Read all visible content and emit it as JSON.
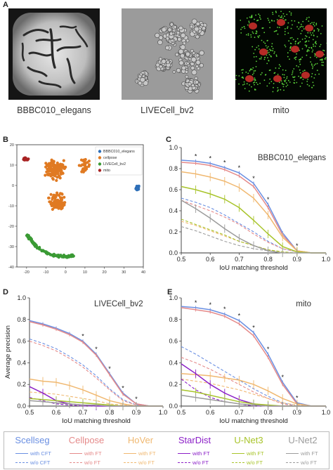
{
  "panel_letters": {
    "a": "A",
    "b": "B",
    "c": "C",
    "d": "D",
    "e": "E"
  },
  "image_captions": [
    "BBBC010_elegans",
    "LIVECell_bv2",
    "mito"
  ],
  "colors": {
    "scellseg": "#6a8fe2",
    "cellpose": "#e58a8a",
    "hover": "#f0b870",
    "stardist": "#8b1fc7",
    "unet3": "#a8c42a",
    "unet2": "#9c9c9c",
    "tsne_bbbc": "#2e6fb8",
    "tsne_cellpose": "#e07a22",
    "tsne_livecell": "#3a9a34",
    "tsne_mito": "#a82222"
  },
  "chart_data": [
    {
      "type": "scatter",
      "panel": "B",
      "xlim": [
        -25,
        40
      ],
      "ylim": [
        -40,
        20
      ],
      "xticks": [
        "-20",
        "-10",
        "0",
        "10",
        "20",
        "30",
        "40"
      ],
      "yticks": [
        "20",
        "10",
        "0",
        "-10",
        "-20",
        "-30",
        "-40"
      ],
      "legend": [
        "BBBC010_elegans",
        "cellpose",
        "LIVECell_bv2",
        "mito"
      ],
      "legend_position": "top-right",
      "clusters": [
        {
          "name": "BBBC010_elegans",
          "center": [
            37,
            -1.5
          ],
          "spread": [
            1.2,
            1.6
          ],
          "n": 30
        },
        {
          "name": "cellpose",
          "center": [
            -5,
            8
          ],
          "spread": [
            7,
            7
          ],
          "n": 140
        },
        {
          "name": "cellpose",
          "center": [
            -4,
            -8
          ],
          "spread": [
            6,
            5
          ],
          "n": 90
        },
        {
          "name": "cellpose",
          "center": [
            10,
            10
          ],
          "spread": [
            4,
            5
          ],
          "n": 30
        },
        {
          "name": "mito",
          "center": [
            -20.5,
            13
          ],
          "spread": [
            1.8,
            0.9
          ],
          "n": 30
        }
      ],
      "livecell_arc": [
        [
          -20,
          -24
        ],
        [
          -15,
          -30
        ],
        [
          -8,
          -34
        ],
        [
          0,
          -35
        ],
        [
          4,
          -34.5
        ]
      ]
    },
    {
      "type": "line",
      "panel": "C",
      "title": "BBBC010_elegans",
      "xlabel": "IoU matching threshold",
      "ylabel": "Average precision",
      "xlim": [
        0.5,
        1.0
      ],
      "ylim": [
        0,
        1.0
      ],
      "x": [
        0.5,
        0.55,
        0.6,
        0.65,
        0.7,
        0.75,
        0.8,
        0.85,
        0.9,
        0.95,
        1.0
      ],
      "xticks": [
        "0.5",
        "0.6",
        "0.7",
        "0.8",
        "0.9",
        "1.0"
      ],
      "yticks": [
        "0.0",
        "0.2",
        "0.4",
        "0.6",
        "0.8",
        "1.0"
      ],
      "stars_at": [
        0.55,
        0.6,
        0.65,
        0.7,
        0.75,
        0.8,
        0.9
      ],
      "series": [
        {
          "key": "scellseg",
          "ft": true,
          "values": [
            0.88,
            0.87,
            0.85,
            0.81,
            0.76,
            0.66,
            0.46,
            0.19,
            0.02,
            0.0,
            0.0
          ]
        },
        {
          "key": "cellpose",
          "ft": true,
          "values": [
            0.86,
            0.85,
            0.83,
            0.79,
            0.73,
            0.63,
            0.43,
            0.17,
            0.02,
            0.0,
            0.0
          ]
        },
        {
          "key": "hover",
          "ft": true,
          "values": [
            0.77,
            0.75,
            0.72,
            0.68,
            0.62,
            0.52,
            0.36,
            0.15,
            0.02,
            0.0,
            0.0
          ]
        },
        {
          "key": "unet3",
          "ft": true,
          "values": [
            0.63,
            0.6,
            0.56,
            0.51,
            0.43,
            0.31,
            0.18,
            0.06,
            0.01,
            0.0,
            0.0
          ]
        },
        {
          "key": "unet2",
          "ft": true,
          "values": [
            0.5,
            0.42,
            0.33,
            0.23,
            0.14,
            0.07,
            0.02,
            0.0,
            0.0,
            0.0,
            0.0
          ]
        },
        {
          "key": "scellseg",
          "ft": false,
          "values": [
            0.52,
            0.48,
            0.43,
            0.36,
            0.28,
            0.2,
            0.11,
            0.04,
            0.01,
            0.0,
            0.0
          ]
        },
        {
          "key": "cellpose",
          "ft": false,
          "values": [
            0.5,
            0.45,
            0.4,
            0.34,
            0.27,
            0.18,
            0.1,
            0.04,
            0.01,
            0.0,
            0.0
          ]
        },
        {
          "key": "hover",
          "ft": false,
          "values": [
            0.3,
            0.26,
            0.21,
            0.16,
            0.11,
            0.07,
            0.03,
            0.01,
            0.0,
            0.0,
            0.0
          ]
        },
        {
          "key": "unet3",
          "ft": false,
          "values": [
            0.32,
            0.27,
            0.22,
            0.17,
            0.11,
            0.07,
            0.03,
            0.01,
            0.0,
            0.0,
            0.0
          ]
        },
        {
          "key": "unet2",
          "ft": false,
          "values": [
            0.25,
            0.21,
            0.16,
            0.11,
            0.07,
            0.04,
            0.02,
            0.0,
            0.0,
            0.0,
            0.0
          ]
        }
      ]
    },
    {
      "type": "line",
      "panel": "D",
      "title": "LIVECell_bv2",
      "xlabel": "IoU matching threshold",
      "ylabel": "Average precision",
      "xlim": [
        0.5,
        1.0
      ],
      "ylim": [
        0,
        1.0
      ],
      "x": [
        0.5,
        0.55,
        0.6,
        0.65,
        0.7,
        0.75,
        0.8,
        0.85,
        0.9,
        0.95,
        1.0
      ],
      "xticks": [
        "0.5",
        "0.6",
        "0.7",
        "0.8",
        "0.9",
        "1.0"
      ],
      "yticks": [
        "0.0",
        "0.2",
        "0.4",
        "0.6",
        "0.8",
        "1.0"
      ],
      "stars_at": [
        0.7,
        0.75,
        0.8,
        0.85,
        0.9
      ],
      "series": [
        {
          "key": "scellseg",
          "ft": true,
          "values": [
            0.79,
            0.76,
            0.72,
            0.67,
            0.6,
            0.48,
            0.3,
            0.12,
            0.02,
            0.0,
            0.0
          ]
        },
        {
          "key": "cellpose",
          "ft": true,
          "values": [
            0.78,
            0.75,
            0.71,
            0.66,
            0.59,
            0.47,
            0.29,
            0.11,
            0.02,
            0.0,
            0.0
          ]
        },
        {
          "key": "scellseg",
          "ft": false,
          "values": [
            0.62,
            0.58,
            0.53,
            0.46,
            0.38,
            0.28,
            0.16,
            0.06,
            0.01,
            0.0,
            0.0
          ]
        },
        {
          "key": "cellpose",
          "ft": false,
          "values": [
            0.6,
            0.56,
            0.51,
            0.44,
            0.36,
            0.26,
            0.15,
            0.05,
            0.01,
            0.0,
            0.0
          ]
        },
        {
          "key": "hover",
          "ft": true,
          "values": [
            0.25,
            0.23,
            0.22,
            0.19,
            0.15,
            0.1,
            0.05,
            0.02,
            0.0,
            0.0,
            0.0
          ]
        },
        {
          "key": "hover",
          "ft": false,
          "values": [
            0.13,
            0.12,
            0.11,
            0.09,
            0.07,
            0.05,
            0.02,
            0.01,
            0.0,
            0.0,
            0.0
          ]
        },
        {
          "key": "stardist",
          "ft": true,
          "values": [
            0.18,
            0.12,
            0.05,
            0.02,
            0.01,
            0.0,
            0.0,
            0.0,
            0.0,
            0.0,
            0.0
          ]
        },
        {
          "key": "stardist",
          "ft": false,
          "values": [
            0.08,
            0.05,
            0.02,
            0.01,
            0.0,
            0.0,
            0.0,
            0.0,
            0.0,
            0.0,
            0.0
          ]
        },
        {
          "key": "unet3",
          "ft": true,
          "values": [
            0.07,
            0.06,
            0.05,
            0.04,
            0.03,
            0.02,
            0.01,
            0.0,
            0.0,
            0.0,
            0.0
          ]
        },
        {
          "key": "unet2",
          "ft": true,
          "values": [
            0.05,
            0.04,
            0.03,
            0.02,
            0.01,
            0.01,
            0.0,
            0.0,
            0.0,
            0.0,
            0.0
          ]
        }
      ]
    },
    {
      "type": "line",
      "panel": "E",
      "title": "mito",
      "xlabel": "IoU matching threshold",
      "ylabel": "Average precision",
      "xlim": [
        0.5,
        1.0
      ],
      "ylim": [
        0,
        1.0
      ],
      "x": [
        0.5,
        0.55,
        0.6,
        0.65,
        0.7,
        0.75,
        0.8,
        0.85,
        0.9,
        0.95,
        1.0
      ],
      "xticks": [
        "0.5",
        "0.6",
        "0.7",
        "0.8",
        "0.9",
        "1.0"
      ],
      "yticks": [
        "0.0",
        "0.2",
        "0.4",
        "0.6",
        "0.8",
        "1.0"
      ],
      "stars_at": [
        0.55,
        0.6,
        0.65,
        0.7,
        0.75,
        0.8,
        0.85,
        0.9
      ],
      "series": [
        {
          "key": "scellseg",
          "ft": true,
          "values": [
            0.92,
            0.91,
            0.89,
            0.85,
            0.79,
            0.68,
            0.48,
            0.22,
            0.03,
            0.0,
            0.0
          ]
        },
        {
          "key": "cellpose",
          "ft": true,
          "values": [
            0.91,
            0.89,
            0.87,
            0.83,
            0.76,
            0.65,
            0.45,
            0.2,
            0.02,
            0.0,
            0.0
          ]
        },
        {
          "key": "scellseg",
          "ft": false,
          "values": [
            0.55,
            0.48,
            0.4,
            0.32,
            0.24,
            0.16,
            0.09,
            0.03,
            0.0,
            0.0,
            0.0
          ]
        },
        {
          "key": "cellpose",
          "ft": false,
          "values": [
            0.45,
            0.4,
            0.34,
            0.27,
            0.2,
            0.13,
            0.07,
            0.02,
            0.0,
            0.0,
            0.0
          ]
        },
        {
          "key": "hover",
          "ft": true,
          "values": [
            0.3,
            0.29,
            0.28,
            0.26,
            0.24,
            0.2,
            0.14,
            0.07,
            0.02,
            0.0,
            0.0
          ]
        },
        {
          "key": "hover",
          "ft": false,
          "values": [
            0.25,
            0.23,
            0.21,
            0.18,
            0.15,
            0.11,
            0.07,
            0.03,
            0.01,
            0.0,
            0.0
          ]
        },
        {
          "key": "stardist",
          "ft": true,
          "values": [
            0.39,
            0.3,
            0.2,
            0.12,
            0.06,
            0.02,
            0.0,
            0.0,
            0.0,
            0.0,
            0.0
          ]
        },
        {
          "key": "stardist",
          "ft": false,
          "values": [
            0.25,
            0.15,
            0.08,
            0.04,
            0.02,
            0.0,
            0.0,
            0.0,
            0.0,
            0.0,
            0.0
          ]
        },
        {
          "key": "unet3",
          "ft": true,
          "values": [
            0.15,
            0.13,
            0.1,
            0.07,
            0.04,
            0.02,
            0.01,
            0.0,
            0.0,
            0.0,
            0.0
          ]
        },
        {
          "key": "unet2",
          "ft": true,
          "values": [
            0.1,
            0.08,
            0.06,
            0.04,
            0.02,
            0.01,
            0.0,
            0.0,
            0.0,
            0.0,
            0.0
          ]
        }
      ]
    }
  ],
  "legend": {
    "methods": [
      {
        "key": "scellseg",
        "name": "Scellseg",
        "with": "with CFT",
        "without": "w/o CFT"
      },
      {
        "key": "cellpose",
        "name": "Cellpose",
        "with": "with FT",
        "without": "w/o FT"
      },
      {
        "key": "hover",
        "name": "HoVer",
        "with": "with FT",
        "without": "w/o FT"
      },
      {
        "key": "stardist",
        "name": "StarDist",
        "with": "with FT",
        "without": "w/o FT"
      },
      {
        "key": "unet3",
        "name": "U-Net3",
        "with": "with FT",
        "without": "w/o FT"
      },
      {
        "key": "unet2",
        "name": "U-Net2",
        "with": "with FT",
        "without": "w/o FT"
      }
    ]
  }
}
